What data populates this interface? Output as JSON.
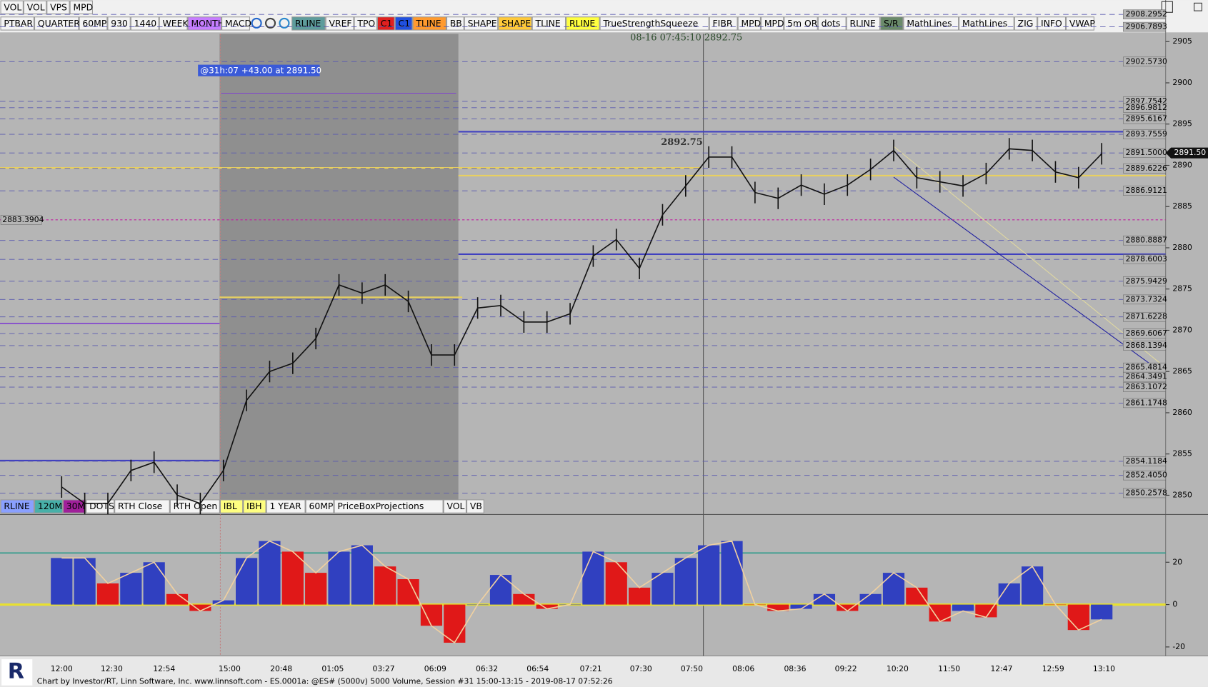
{
  "toolbar_top": [
    "VOL",
    "VOL",
    "VPS",
    "MPD"
  ],
  "toolbar": [
    {
      "text": "PTBAR"
    },
    {
      "text": "QUARTER"
    },
    {
      "text": "60MP"
    },
    {
      "text": "930"
    },
    {
      "text": "1440"
    },
    {
      "text": "WEEK"
    },
    {
      "text": "MONTH",
      "bg": "#c77dff"
    },
    {
      "text": "MACD"
    },
    {
      "text": "RLINE",
      "bg": "#5e9c9c"
    },
    {
      "text": "VREF"
    },
    {
      "text": "TPO"
    },
    {
      "text": "C1",
      "bg": "#e02020"
    },
    {
      "text": "C1",
      "bg": "#2050e0"
    },
    {
      "text": "TLINE",
      "bg": "#ff9a2e"
    },
    {
      "text": "BB"
    },
    {
      "text": "SHAPE"
    },
    {
      "text": "SHAPE",
      "bg": "#ffc93a"
    },
    {
      "text": "TLINE"
    },
    {
      "text": "RLINE",
      "bg": "#ffff40"
    },
    {
      "text": "TrueStrengthSqueeze"
    },
    {
      "text": "FIBR"
    },
    {
      "text": "MPD"
    },
    {
      "text": "MPD"
    },
    {
      "text": "5m OR"
    },
    {
      "text": "dots"
    },
    {
      "text": "RLINE"
    },
    {
      "text": "S/R",
      "bg": "#6a8a6a"
    },
    {
      "text": "MathLines"
    },
    {
      "text": "MathLines"
    },
    {
      "text": "ZIG"
    },
    {
      "text": "INFO"
    },
    {
      "text": "VWAP"
    }
  ],
  "toolbar_bottom": [
    {
      "text": "RLINE",
      "bg": "#8aa0ff"
    },
    {
      "text": "120M",
      "bg": "#48b0a8"
    },
    {
      "text": "30M",
      "bg": "#a0209a"
    },
    {
      "text": "DOTS"
    },
    {
      "text": "RTH Close"
    },
    {
      "text": "RTH Open"
    },
    {
      "text": "IBL",
      "bg": "#ffff80"
    },
    {
      "text": "IBH",
      "bg": "#ffff80"
    },
    {
      "text": "1 YEAR"
    },
    {
      "text": "60MP"
    },
    {
      "text": "PriceBoxProjections"
    },
    {
      "text": "VOL"
    },
    {
      "text": "VB"
    }
  ],
  "cursor_info": "08-16 07:45:10  2892.75",
  "annotation": "@31h:07  +43.00 at 2891.50",
  "price_marker": "2892.75",
  "last_price": "2891.50",
  "price_ticks": [
    2850,
    2855,
    2860,
    2865,
    2870,
    2875,
    2880,
    2885,
    2890,
    2895,
    2900,
    2905
  ],
  "levels": [
    "2908.2952",
    "2906.7893",
    "2902.5730",
    "2897.7542",
    "2896.9812",
    "2895.6167",
    "2893.7559",
    "2891.5000",
    "2889.6226",
    "2886.9121",
    "2880.8887",
    "2878.6003",
    "2875.9429",
    "2873.7324",
    "2871.6228",
    "2869.6067",
    "2868.1394",
    "2865.4814",
    "2864.3491",
    "2863.1072",
    "2861.1748",
    "2854.1184",
    "2852.4050",
    "2850.2578"
  ],
  "left_level": "2883.3904",
  "time_labels": [
    "12:00",
    "12:30",
    "12:54",
    "15:00",
    "20:48",
    "01:05",
    "03:27",
    "06:09",
    "06:32",
    "06:54",
    "07:21",
    "07:30",
    "07:50",
    "08:06",
    "08:36",
    "09:22",
    "10:20",
    "11:50",
    "12:47",
    "12:59",
    "13:10"
  ],
  "prices": [
    2851,
    2849,
    2849,
    2853,
    2854,
    2850,
    2849,
    2853,
    2861.5,
    2865,
    2866,
    2869,
    2875.5,
    2874.5,
    2875.5,
    2873.5,
    2867,
    2867,
    2872.7,
    2873,
    2871,
    2871,
    2872,
    2879,
    2881,
    2877.5,
    2884,
    2887.5,
    2891,
    2891,
    2886.7,
    2886,
    2887.6,
    2886.5,
    2887.6,
    2889.5,
    2891.8,
    2888.5,
    2888,
    2887.5,
    2889,
    2892,
    2891.8,
    2889.2,
    2888.5,
    2891.4
  ],
  "oscillator": [
    22,
    22,
    10,
    15,
    20,
    5,
    -3,
    2,
    22,
    30,
    25,
    15,
    25,
    28,
    18,
    12,
    -10,
    -18,
    0,
    14,
    5,
    -2,
    0,
    25,
    20,
    8,
    15,
    22,
    28,
    30,
    0,
    -3,
    -2,
    5,
    -3,
    5,
    15,
    8,
    -8,
    -3,
    -6,
    10,
    18,
    0,
    -12,
    -7
  ],
  "osc_ticks": [
    20,
    0,
    -20
  ],
  "footer": "Chart by Investor/RT, Linn Software, Inc. www.linnsoft.com - ES.0001a: @ES# (5000v) 5000 Volume, Session #31 15:00-13:15 - 2019-08-17 07:52:26"
}
